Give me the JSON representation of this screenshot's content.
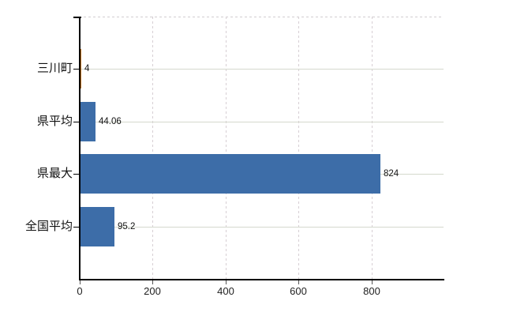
{
  "chart_data": {
    "type": "bar",
    "orientation": "horizontal",
    "title": "",
    "xlabel": "",
    "ylabel": "",
    "categories": [
      "三川町",
      "県平均",
      "県最大",
      "全国平均"
    ],
    "values": [
      4,
      44.06,
      824,
      95.2
    ],
    "value_labels": [
      "4",
      "44.06",
      "824",
      "95.2"
    ],
    "bar_colors": [
      "#ef9c3c",
      "#3d6da8",
      "#3d6da8",
      "#3d6da8"
    ],
    "bar_borders": [
      "#c0701a",
      null,
      null,
      null
    ],
    "x_ticks": [
      0,
      200,
      400,
      600,
      800
    ],
    "xlim": [
      0,
      1000
    ],
    "grid": true,
    "legend": false
  },
  "colors": {
    "bar_blue": "#3d6da8",
    "bar_highlight_orange": "#ef9c3c",
    "bar_highlight_border": "#c0701a",
    "axis_line": "#000000",
    "x_tick_mark": "#555555",
    "y_tick_mark": "#000000",
    "grid_horizontal": "#d4d9cd",
    "grid_vertical": "#d7cfd4",
    "plot_top_border": "#d2cdd0",
    "background": "#ffffff",
    "label_text": "#111111"
  }
}
